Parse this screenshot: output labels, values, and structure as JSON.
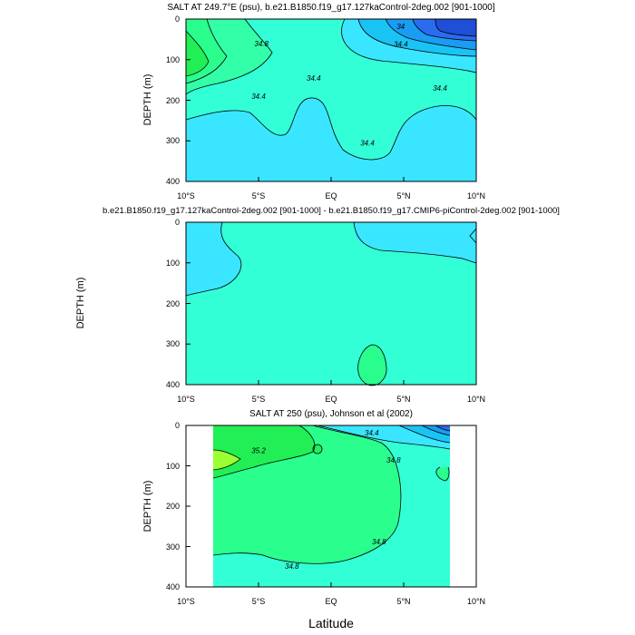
{
  "figure": {
    "shared_ylabel": "DEPTH (m)",
    "shared_xlabel": "Latitude"
  },
  "colors": {
    "palette": [
      "#1f4fd8",
      "#2a6cf0",
      "#1a9cf2",
      "#19c4f5",
      "#3ae6ff",
      "#33ffd6",
      "#2aff8e",
      "#22ef55",
      "#9cff33"
    ],
    "land_mask": "#ffffff",
    "contour_line": "#000000"
  },
  "chart_data": [
    {
      "type": "contour",
      "title": "SALT AT 249.7°E (psu), b.e21.B1850.f19_g17.127kaControl-2deg.002 [901-1000]",
      "ylabel": "DEPTH (m)",
      "xlabel": "",
      "x_unit": "latitude (deg, negative = S)",
      "xlim": [
        -10,
        10
      ],
      "ylim": [
        400,
        0
      ],
      "x_ticks": [
        "10°S",
        "5°S",
        "EQ",
        "5°N",
        "10°N"
      ],
      "y_ticks": [
        "0",
        "100",
        "200",
        "300",
        "400"
      ],
      "background_level": 34.6,
      "contour_labels": [
        {
          "text": "34.8",
          "x": -4.8,
          "y": 60
        },
        {
          "text": "34",
          "x": 4.8,
          "y": 18
        },
        {
          "text": "34.4",
          "x": 4.8,
          "y": 62
        },
        {
          "text": "34.4",
          "x": -1.2,
          "y": 145
        },
        {
          "text": "34.4",
          "x": -5.0,
          "y": 190
        },
        {
          "text": "34.4",
          "x": 2.5,
          "y": 305
        },
        {
          "text": "34.4",
          "x": 7.5,
          "y": 170
        }
      ]
    },
    {
      "type": "contour",
      "title": "b.e21.B1850.f19_g17.127kaControl-2deg.002 [901-1000] - b.e21.B1850.f19_g17.CMIP6-piControl-2deg.002 [901-1000]",
      "ylabel": "",
      "xlabel": "",
      "x_unit": "latitude (deg, negative = S)",
      "xlim": [
        -10,
        10
      ],
      "ylim": [
        400,
        0
      ],
      "x_ticks": [
        "10°S",
        "5°S",
        "EQ",
        "5°N",
        "10°N"
      ],
      "y_ticks": [
        "0",
        "100",
        "200",
        "300",
        "400"
      ],
      "contour_labels": []
    },
    {
      "type": "contour",
      "title": "SALT AT 250 (psu), Johnson et al (2002)",
      "ylabel": "DEPTH (m)",
      "xlabel": "Latitude",
      "x_unit": "latitude (deg, negative = S)",
      "xlim": [
        -10,
        10
      ],
      "ylim": [
        400,
        0
      ],
      "x_ticks": [
        "10°S",
        "5°S",
        "EQ",
        "5°N",
        "10°N"
      ],
      "y_ticks": [
        "0",
        "100",
        "200",
        "300",
        "400"
      ],
      "data_extent_lat": [
        -8,
        8
      ],
      "contour_labels": [
        {
          "text": "35.2",
          "x": -5.0,
          "y": 62
        },
        {
          "text": "34.4",
          "x": 2.8,
          "y": 18
        },
        {
          "text": "34.8",
          "x": 4.3,
          "y": 85
        },
        {
          "text": "34.8",
          "x": 3.3,
          "y": 288
        },
        {
          "text": "34.8",
          "x": -2.7,
          "y": 348
        }
      ]
    }
  ]
}
